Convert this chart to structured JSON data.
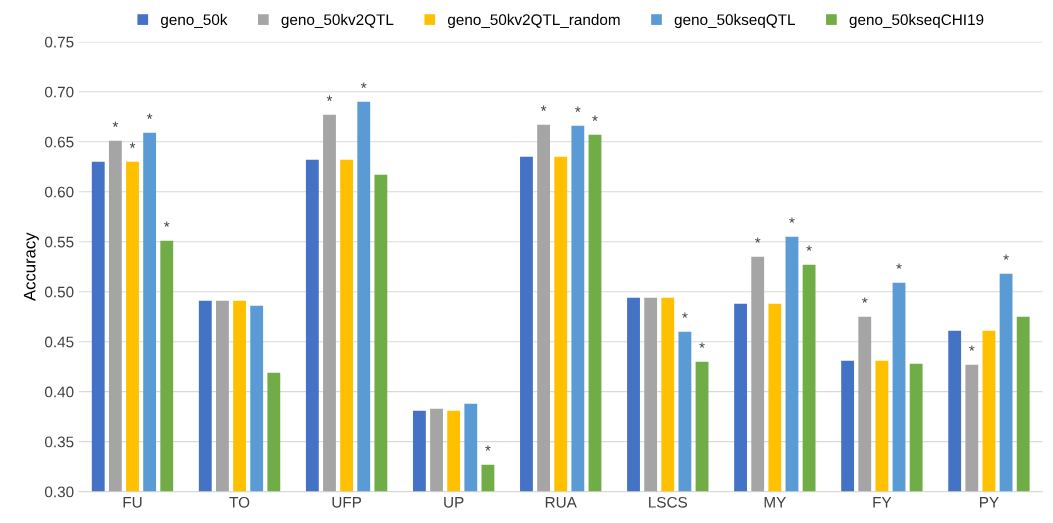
{
  "chart_data": {
    "type": "bar",
    "ylabel": "Accuracy",
    "categories": [
      "FU",
      "TO",
      "UFP",
      "UP",
      "RUA",
      "LSCS",
      "MY",
      "FY",
      "PY"
    ],
    "series": [
      {
        "name": "geno_50k",
        "color": "#4472c4",
        "values": [
          0.63,
          0.491,
          0.632,
          0.381,
          0.635,
          0.494,
          0.488,
          0.431,
          0.461
        ]
      },
      {
        "name": "geno_50kv2QTL",
        "color": "#a5a5a5",
        "values": [
          0.651,
          0.491,
          0.677,
          0.383,
          0.667,
          0.494,
          0.535,
          0.475,
          0.427
        ],
        "value_labels": [
          "*",
          null,
          "*",
          null,
          "*",
          null,
          "*",
          "*",
          "*"
        ]
      },
      {
        "name": "geno_50kv2QTL_random",
        "color": "#ffc000",
        "values": [
          0.63,
          0.491,
          0.632,
          0.381,
          0.635,
          0.494,
          0.488,
          0.431,
          0.461
        ],
        "value_labels": [
          "*",
          null,
          null,
          null,
          null,
          null,
          null,
          null,
          null
        ]
      },
      {
        "name": "geno_50kseqQTL",
        "color": "#5b9bd5",
        "values": [
          0.659,
          0.486,
          0.69,
          0.388,
          0.666,
          0.46,
          0.555,
          0.509,
          0.518
        ],
        "value_labels": [
          "*",
          null,
          "*",
          null,
          "*",
          "*",
          "*",
          "*",
          "*"
        ]
      },
      {
        "name": "geno_50kseqCHI19",
        "color": "#70ad47",
        "values": [
          0.551,
          0.419,
          0.617,
          0.327,
          0.657,
          0.43,
          0.527,
          0.428,
          0.475
        ],
        "value_labels": [
          "*",
          null,
          null,
          "*",
          "*",
          "*",
          "*",
          null,
          null
        ]
      }
    ],
    "ylim": [
      0.3,
      0.75
    ],
    "yticks": [
      {
        "value": 0.3,
        "label": "0.30"
      },
      {
        "value": 0.35,
        "label": "0.35"
      },
      {
        "value": 0.4,
        "label": "0.40"
      },
      {
        "value": 0.45,
        "label": "0.45"
      },
      {
        "value": 0.5,
        "label": "0.50"
      },
      {
        "value": 0.55,
        "label": "0.55"
      },
      {
        "value": 0.6,
        "label": "0.60"
      },
      {
        "value": 0.65,
        "label": "0.65"
      },
      {
        "value": 0.7,
        "label": "0.70"
      },
      {
        "value": 0.75,
        "label": "0.75"
      }
    ],
    "grid": "y",
    "legend": "top"
  }
}
